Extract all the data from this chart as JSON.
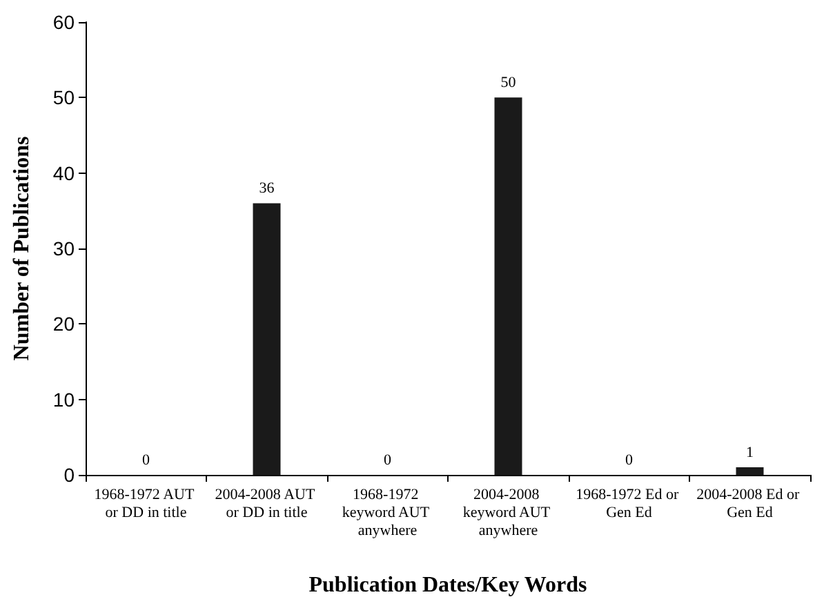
{
  "chart_data": {
    "type": "bar",
    "xlabel": "Publication Dates/Key Words",
    "ylabel": "Number of Publications",
    "categories": [
      "1968-1972 AUT or DD in title",
      "2004-2008 AUT or DD in title",
      "1968-1972 keyword AUT anywhere",
      "2004-2008 keyword AUT anywhere",
      "1968-1972 Ed or Gen Ed",
      "2004-2008 Ed or Gen Ed"
    ],
    "values": [
      0,
      36,
      0,
      50,
      0,
      1
    ],
    "color": "#1a1a1a",
    "ylim": [
      0,
      60
    ],
    "yticks": [
      0,
      10,
      20,
      30,
      40,
      50,
      60
    ],
    "grid": false,
    "data_labels": true
  }
}
